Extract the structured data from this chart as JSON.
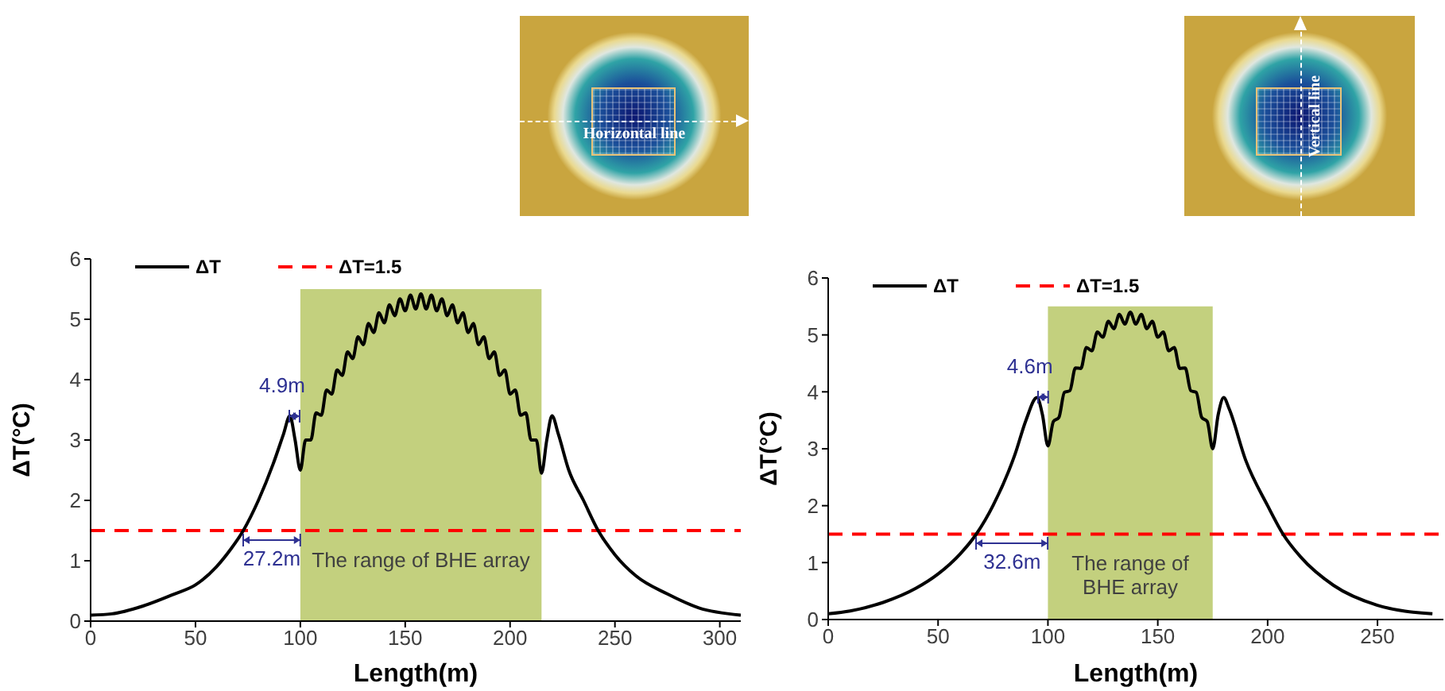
{
  "chart_data": [
    {
      "type": "line",
      "xlabel": "Length(m)",
      "ylabel": "ΔT(°C)",
      "xlim": [
        0,
        310
      ],
      "xticks": [
        0,
        50,
        100,
        150,
        200,
        250,
        300
      ],
      "ylim": [
        0,
        6
      ],
      "yticks": [
        0,
        1,
        2,
        3,
        4,
        5,
        6
      ],
      "legend": "top left",
      "x": [
        0,
        10,
        25,
        40,
        50,
        60,
        67,
        72.8,
        80,
        87,
        92,
        95,
        97.5,
        100,
        102.5,
        105,
        107.5,
        110,
        112.5,
        115,
        117.5,
        120,
        122.5,
        125,
        127.5,
        130,
        132.5,
        135,
        137.5,
        140,
        142.5,
        145,
        147.5,
        150,
        152.5,
        155,
        157.5,
        160,
        162.5,
        165,
        167.5,
        170,
        172.5,
        175,
        177.5,
        180,
        182.5,
        185,
        187.5,
        190,
        192.5,
        195,
        197.5,
        200,
        202.5,
        205,
        207.5,
        210,
        212.5,
        215,
        217.5,
        220,
        223,
        228,
        235,
        242,
        250,
        260,
        275,
        290,
        310
      ],
      "series": [
        {
          "name": "ΔT",
          "color": "#000000",
          "values": [
            0.1,
            0.12,
            0.25,
            0.45,
            0.6,
            0.9,
            1.2,
            1.5,
            2.0,
            2.6,
            3.1,
            3.4,
            3.0,
            2.5,
            3.0,
            3.0,
            3.45,
            3.41,
            3.83,
            3.76,
            4.16,
            4.07,
            4.46,
            4.35,
            4.71,
            4.58,
            4.93,
            4.78,
            5.11,
            4.94,
            5.24,
            5.06,
            5.34,
            5.14,
            5.4,
            5.17,
            5.42,
            5.17,
            5.4,
            5.14,
            5.34,
            5.06,
            5.24,
            4.94,
            5.11,
            4.78,
            4.93,
            4.58,
            4.71,
            4.35,
            4.46,
            4.07,
            4.16,
            3.76,
            3.83,
            3.41,
            3.45,
            3.0,
            3.0,
            2.45,
            3.0,
            3.4,
            3.1,
            2.5,
            2.0,
            1.5,
            1.1,
            0.75,
            0.45,
            0.22,
            0.1
          ]
        }
      ],
      "ref_lines": [
        {
          "axis": "y",
          "value": 1.5,
          "label": "ΔT=1.5",
          "color": "#ff0000",
          "line_style": "dashed"
        }
      ],
      "bands": [
        {
          "axis": "x",
          "from": 100,
          "to": 215,
          "label": "The range of BHE array",
          "color": "#c3d07e"
        }
      ],
      "annotations": [
        "Horizontal line",
        {
          "text": "4.9m",
          "x": 95.1,
          "y": 3.4
        },
        {
          "text": "27.2m",
          "x": 72.8,
          "y": 1.35
        }
      ]
    },
    {
      "type": "line",
      "xlabel": "Length(m)",
      "ylabel": "ΔT(°C)",
      "xlim": [
        0,
        280
      ],
      "xticks": [
        0,
        50,
        100,
        150,
        200,
        250
      ],
      "ylim": [
        0,
        6
      ],
      "yticks": [
        0,
        1,
        2,
        3,
        4,
        5,
        6
      ],
      "legend": "top left",
      "x": [
        0,
        10,
        25,
        40,
        50,
        60,
        67.4,
        75,
        85,
        90,
        95,
        97.5,
        100,
        102.5,
        105,
        107.5,
        110,
        112.5,
        115,
        117.5,
        120,
        122.5,
        125,
        127.5,
        130,
        132.5,
        135,
        137.5,
        140,
        142.5,
        145,
        147.5,
        150,
        152.5,
        155,
        157.5,
        160,
        162.5,
        165,
        167.5,
        170,
        172.5,
        175,
        177.5,
        180,
        182.5,
        190,
        200,
        207,
        215,
        230,
        250,
        275
      ],
      "series": [
        {
          "name": "ΔT",
          "color": "#000000",
          "values": [
            0.1,
            0.15,
            0.3,
            0.55,
            0.8,
            1.15,
            1.5,
            2.0,
            2.9,
            3.5,
            3.9,
            3.6,
            3.05,
            3.48,
            3.55,
            3.99,
            4.02,
            4.42,
            4.41,
            4.78,
            4.72,
            5.05,
            4.96,
            5.24,
            5.11,
            5.36,
            5.19,
            5.4,
            5.19,
            5.36,
            5.11,
            5.24,
            4.96,
            5.05,
            4.72,
            4.78,
            4.41,
            4.42,
            4.02,
            3.99,
            3.55,
            3.48,
            3.0,
            3.6,
            3.9,
            3.7,
            2.8,
            2.0,
            1.5,
            1.1,
            0.6,
            0.25,
            0.1
          ]
        }
      ],
      "ref_lines": [
        {
          "axis": "y",
          "value": 1.5,
          "label": "ΔT=1.5",
          "color": "#ff0000",
          "line_style": "dashed"
        }
      ],
      "bands": [
        {
          "axis": "x",
          "from": 100,
          "to": 175,
          "label": "The range of BHE array",
          "color": "#c3d07e"
        }
      ],
      "annotations": [
        "Vertical line",
        {
          "text": "4.6m",
          "x": 95.4,
          "y": 3.9
        },
        {
          "text": "32.6m",
          "x": 67.4,
          "y": 1.35
        }
      ]
    }
  ]
}
